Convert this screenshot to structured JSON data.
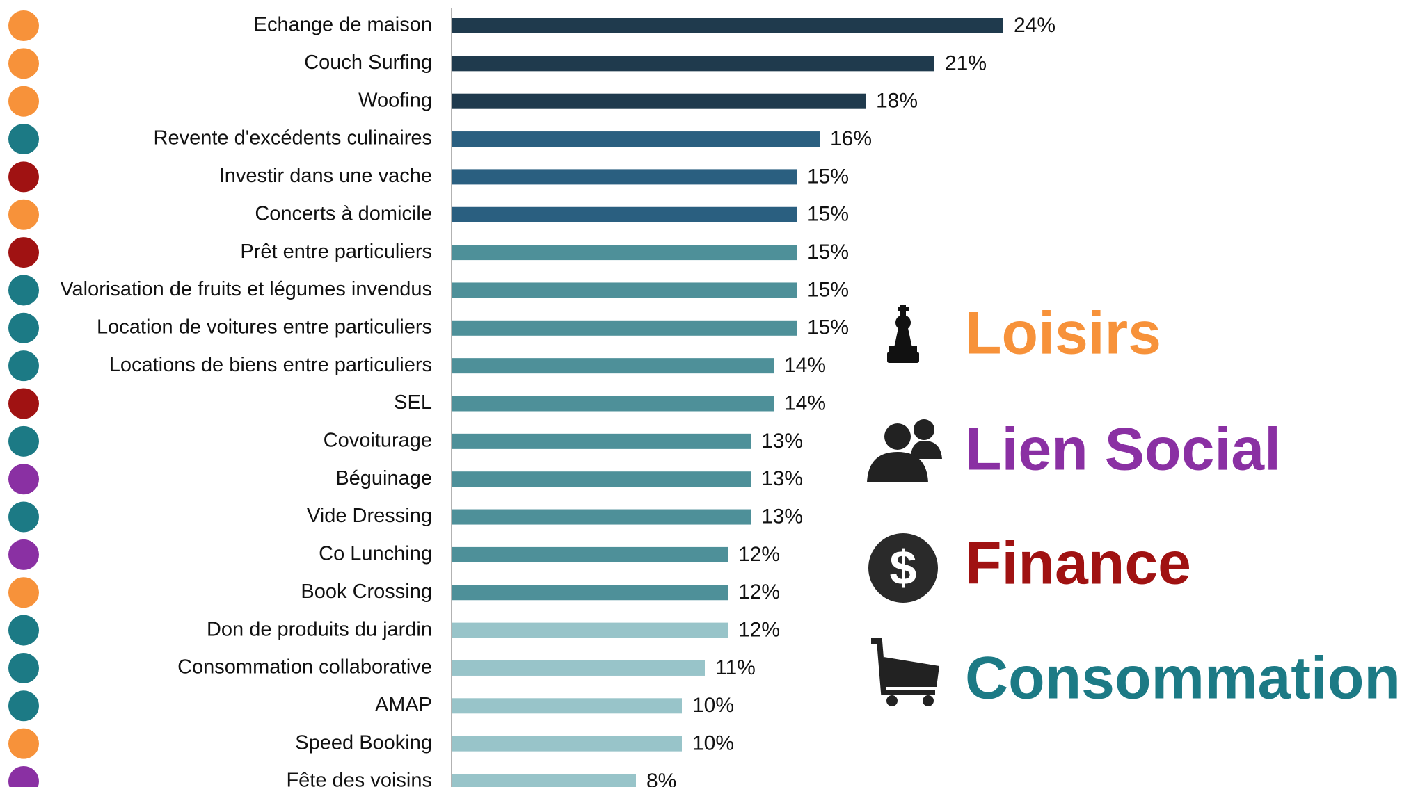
{
  "chart_data": {
    "type": "hbar",
    "categories": [
      "Echange de maison",
      "Couch Surfing",
      "Woofing",
      "Revente d'excédents culinaires",
      "Investir dans une vache",
      "Concerts à domicile",
      "Prêt entre particuliers",
      "Valorisation de fruits et légumes invendus",
      "Location de voitures entre particuliers",
      "Locations de biens entre particuliers",
      "SEL",
      "Covoiturage",
      "Béguinage",
      "Vide Dressing",
      "Co Lunching",
      "Book Crossing",
      "Don de produits du jardin",
      "Consommation collaborative",
      "AMAP",
      "Speed Booking",
      "Fête des voisins"
    ],
    "values": [
      24,
      21,
      18,
      16,
      15,
      15,
      15,
      15,
      15,
      14,
      14,
      13,
      13,
      13,
      12,
      12,
      12,
      11,
      10,
      10,
      8
    ],
    "value_labels": [
      "24%",
      "21%",
      "18%",
      "16%",
      "15%",
      "15%",
      "15%",
      "15%",
      "15%",
      "14%",
      "14%",
      "13%",
      "13%",
      "13%",
      "12%",
      "12%",
      "12%",
      "11%",
      "10%",
      "10%",
      "8%"
    ],
    "bar_colors": [
      "#1f3a4d",
      "#1f3a4d",
      "#1f3a4d",
      "#2a5f80",
      "#2a5f80",
      "#2a5f80",
      "#4e9099",
      "#4e9099",
      "#4e9099",
      "#4e9099",
      "#4e9099",
      "#4e9099",
      "#4e9099",
      "#4e9099",
      "#4e9099",
      "#4e9099",
      "#98c4c9",
      "#98c4c9",
      "#98c4c9",
      "#98c4c9",
      "#98c4c9"
    ],
    "dot_colors": [
      "#f7923a",
      "#f7923a",
      "#f7923a",
      "#1c7a85",
      "#a01212",
      "#f7923a",
      "#a01212",
      "#1c7a85",
      "#1c7a85",
      "#1c7a85",
      "#a01212",
      "#1c7a85",
      "#8a30a3",
      "#1c7a85",
      "#8a30a3",
      "#f7923a",
      "#1c7a85",
      "#1c7a85",
      "#1c7a85",
      "#f7923a",
      "#8a30a3"
    ],
    "legend": [
      {
        "name": "Loisirs",
        "color": "#f7923a"
      },
      {
        "name": "Lien Social",
        "color": "#8a30a3"
      },
      {
        "name": "Finance",
        "color": "#a01212"
      },
      {
        "name": "Consommation",
        "color": "#1c7a85"
      }
    ]
  }
}
